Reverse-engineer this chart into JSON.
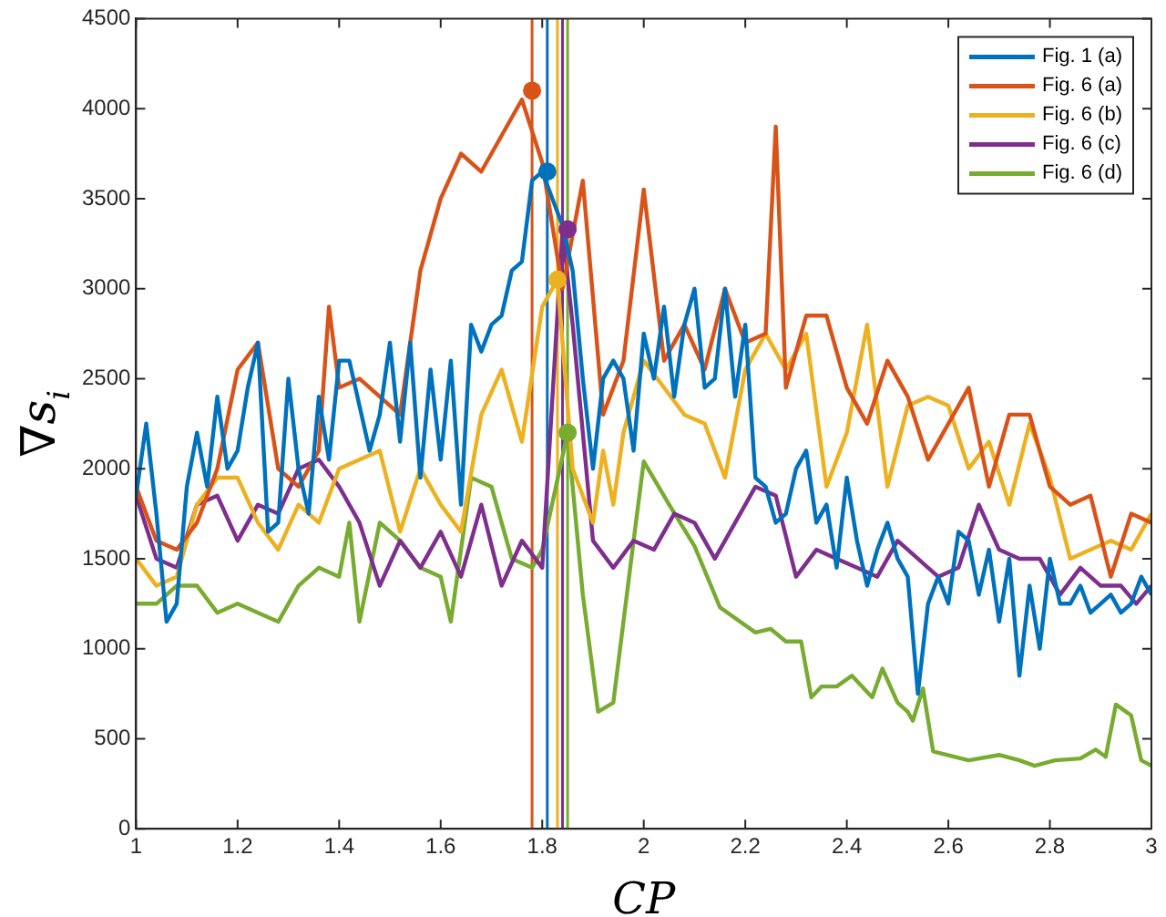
{
  "chart_data": {
    "type": "line",
    "xlabel": "CP",
    "ylabel": "∇s$_{i}$",
    "xlim": [
      1,
      3
    ],
    "xticks": [
      1,
      1.2,
      1.4,
      1.6,
      1.8,
      2,
      2.2,
      2.4,
      2.6,
      2.8,
      3
    ],
    "ylim": [
      0,
      4500
    ],
    "yticks": [
      0,
      500,
      1000,
      1500,
      2000,
      2500,
      3000,
      3500,
      4000,
      4500
    ],
    "grid": false,
    "legend": "top right",
    "marker": "none",
    "line_style": "solid",
    "series": [
      {
        "name": "Fig. 1 (a)",
        "color": "#0072bd",
        "x": [
          1,
          1.02,
          1.04,
          1.06,
          1.08,
          1.1,
          1.12,
          1.14,
          1.16,
          1.18,
          1.2,
          1.22,
          1.24,
          1.26,
          1.28,
          1.3,
          1.32,
          1.34,
          1.36,
          1.38,
          1.4,
          1.42,
          1.44,
          1.46,
          1.48,
          1.5,
          1.52,
          1.54,
          1.56,
          1.58,
          1.6,
          1.62,
          1.64,
          1.66,
          1.68,
          1.7,
          1.72,
          1.74,
          1.76,
          1.78,
          1.8,
          1.82,
          1.84,
          1.86,
          1.88,
          1.9,
          1.92,
          1.94,
          1.96,
          1.98,
          2,
          2.02,
          2.04,
          2.06,
          2.08,
          2.1,
          2.12,
          2.14,
          2.16,
          2.18,
          2.2,
          2.22,
          2.24,
          2.26,
          2.28,
          2.3,
          2.32,
          2.34,
          2.36,
          2.38,
          2.4,
          2.42,
          2.44,
          2.46,
          2.48,
          2.5,
          2.52,
          2.54,
          2.56,
          2.58,
          2.6,
          2.62,
          2.64,
          2.66,
          2.68,
          2.7,
          2.72,
          2.74,
          2.76,
          2.78,
          2.8,
          2.82,
          2.84,
          2.86,
          2.88,
          2.9,
          2.92,
          2.94,
          2.96,
          2.98,
          3
        ],
        "values": [
          1850,
          2250,
          1750,
          1150,
          1250,
          1900,
          2200,
          1900,
          2400,
          2000,
          2100,
          2450,
          2700,
          1650,
          1700,
          2500,
          2000,
          1750,
          2400,
          2050,
          2600,
          2600,
          2350,
          2100,
          2300,
          2700,
          2150,
          2700,
          1950,
          2550,
          2050,
          2600,
          1800,
          2800,
          2650,
          2800,
          2850,
          3100,
          3150,
          3600,
          3650,
          3500,
          3350,
          3100,
          2500,
          2000,
          2500,
          2600,
          2500,
          2100,
          2750,
          2500,
          2900,
          2400,
          2800,
          3000,
          2450,
          2500,
          3000,
          2400,
          2800,
          1950,
          1900,
          1700,
          1750,
          2000,
          2100,
          1700,
          1800,
          1450,
          1950,
          1600,
          1350,
          1550,
          1700,
          1500,
          1400,
          750,
          1250,
          1400,
          1250,
          1650,
          1600,
          1300,
          1550,
          1150,
          1500,
          850,
          1350,
          1000,
          1500,
          1250,
          1250,
          1350,
          1200,
          1250,
          1300,
          1200,
          1250,
          1400,
          1300
        ]
      },
      {
        "name": "Fig. 6 (a)",
        "color": "#d95319",
        "x": [
          1,
          1.04,
          1.08,
          1.12,
          1.16,
          1.2,
          1.24,
          1.28,
          1.32,
          1.36,
          1.38,
          1.4,
          1.44,
          1.48,
          1.52,
          1.56,
          1.6,
          1.64,
          1.68,
          1.72,
          1.76,
          1.8,
          1.84,
          1.88,
          1.92,
          1.96,
          2,
          2.04,
          2.08,
          2.12,
          2.16,
          2.2,
          2.24,
          2.26,
          2.28,
          2.32,
          2.36,
          2.4,
          2.44,
          2.48,
          2.52,
          2.56,
          2.6,
          2.64,
          2.68,
          2.72,
          2.76,
          2.8,
          2.84,
          2.88,
          2.92,
          2.96,
          3
        ],
        "values": [
          1900,
          1600,
          1550,
          1700,
          2000,
          2550,
          2700,
          2000,
          1900,
          2100,
          2900,
          2450,
          2500,
          2400,
          2300,
          3100,
          3500,
          3750,
          3650,
          3850,
          4050,
          3700,
          3000,
          3600,
          2300,
          2600,
          3550,
          2600,
          2800,
          2550,
          3000,
          2700,
          2750,
          3900,
          2450,
          2850,
          2850,
          2450,
          2250,
          2600,
          2400,
          2050,
          2250,
          2450,
          1900,
          2300,
          2300,
          1900,
          1800,
          1850,
          1400,
          1750,
          1700
        ]
      },
      {
        "name": "Fig. 6 (b)",
        "color": "#edb120",
        "x": [
          1,
          1.04,
          1.08,
          1.12,
          1.16,
          1.2,
          1.24,
          1.28,
          1.32,
          1.36,
          1.4,
          1.44,
          1.48,
          1.52,
          1.56,
          1.6,
          1.64,
          1.68,
          1.72,
          1.76,
          1.8,
          1.83,
          1.86,
          1.9,
          1.92,
          1.94,
          1.96,
          2,
          2.04,
          2.08,
          2.12,
          2.16,
          2.2,
          2.24,
          2.28,
          2.32,
          2.36,
          2.4,
          2.44,
          2.48,
          2.52,
          2.56,
          2.6,
          2.64,
          2.68,
          2.72,
          2.76,
          2.8,
          2.84,
          2.88,
          2.92,
          2.96,
          3
        ],
        "values": [
          1500,
          1350,
          1400,
          1800,
          1950,
          1950,
          1700,
          1550,
          1800,
          1700,
          2000,
          2050,
          2100,
          1650,
          2000,
          1800,
          1650,
          2300,
          2550,
          2150,
          2900,
          3050,
          2000,
          1700,
          2100,
          1800,
          2200,
          2600,
          2450,
          2300,
          2250,
          1950,
          2550,
          2750,
          2550,
          2750,
          1900,
          2200,
          2800,
          1900,
          2350,
          2400,
          2350,
          2000,
          2150,
          1800,
          2250,
          1950,
          1500,
          1550,
          1600,
          1550,
          1750
        ]
      },
      {
        "name": "Fig. 6 (c)",
        "color": "#7e2f8e",
        "x": [
          1,
          1.04,
          1.08,
          1.12,
          1.16,
          1.2,
          1.24,
          1.28,
          1.32,
          1.36,
          1.4,
          1.44,
          1.48,
          1.52,
          1.56,
          1.6,
          1.64,
          1.68,
          1.72,
          1.76,
          1.8,
          1.84,
          1.86,
          1.88,
          1.9,
          1.94,
          1.98,
          2.02,
          2.06,
          2.1,
          2.14,
          2.18,
          2.22,
          2.26,
          2.3,
          2.34,
          2.38,
          2.42,
          2.46,
          2.5,
          2.54,
          2.58,
          2.62,
          2.66,
          2.7,
          2.74,
          2.78,
          2.82,
          2.86,
          2.9,
          2.94,
          2.97,
          3
        ],
        "values": [
          1850,
          1500,
          1450,
          1800,
          1850,
          1600,
          1800,
          1750,
          2000,
          2050,
          1900,
          1700,
          1350,
          1600,
          1450,
          1650,
          1400,
          1800,
          1350,
          1600,
          1450,
          3330,
          2800,
          2200,
          1600,
          1450,
          1600,
          1550,
          1750,
          1700,
          1500,
          1700,
          1900,
          1850,
          1400,
          1550,
          1500,
          1450,
          1400,
          1600,
          1500,
          1400,
          1450,
          1800,
          1550,
          1500,
          1500,
          1300,
          1450,
          1350,
          1350,
          1250,
          1350
        ]
      },
      {
        "name": "Fig. 6 (d)",
        "color": "#77ac30",
        "x": [
          1,
          1.04,
          1.08,
          1.12,
          1.16,
          1.2,
          1.24,
          1.28,
          1.32,
          1.36,
          1.4,
          1.42,
          1.44,
          1.48,
          1.52,
          1.56,
          1.6,
          1.62,
          1.66,
          1.7,
          1.74,
          1.78,
          1.8,
          1.85,
          1.88,
          1.91,
          1.94,
          1.98,
          2,
          2.05,
          2.1,
          2.15,
          2.22,
          2.25,
          2.28,
          2.31,
          2.33,
          2.35,
          2.38,
          2.41,
          2.45,
          2.47,
          2.5,
          2.52,
          2.53,
          2.55,
          2.57,
          2.64,
          2.7,
          2.74,
          2.77,
          2.81,
          2.86,
          2.89,
          2.91,
          2.93,
          2.96,
          2.98,
          3
        ],
        "values": [
          1250,
          1250,
          1350,
          1350,
          1200,
          1250,
          1200,
          1150,
          1350,
          1450,
          1400,
          1700,
          1150,
          1700,
          1600,
          1450,
          1400,
          1150,
          1950,
          1900,
          1500,
          1450,
          1550,
          2200,
          1300,
          650,
          700,
          1600,
          2040,
          1800,
          1570,
          1230,
          1090,
          1110,
          1040,
          1040,
          730,
          790,
          790,
          850,
          730,
          890,
          700,
          650,
          600,
          780,
          430,
          380,
          410,
          380,
          350,
          380,
          390,
          440,
          400,
          690,
          630,
          380,
          350
        ]
      },
      {
        "type": "scatter",
        "marker": "circle",
        "color": "#d95319",
        "x": [
          1.78
        ],
        "values": [
          4100
        ]
      },
      {
        "type": "scatter",
        "marker": "circle",
        "color": "#0072bd",
        "x": [
          1.81
        ],
        "values": [
          3650
        ]
      },
      {
        "type": "scatter",
        "marker": "circle",
        "color": "#edb120",
        "x": [
          1.83
        ],
        "values": [
          3050
        ]
      },
      {
        "type": "scatter",
        "marker": "circle",
        "color": "#7e2f8e",
        "x": [
          1.85
        ],
        "values": [
          3330
        ]
      },
      {
        "type": "scatter",
        "marker": "circle",
        "color": "#77ac30",
        "x": [
          1.85
        ],
        "values": [
          2200
        ]
      }
    ],
    "ref_lines": [
      {
        "axis": "x",
        "value": 1.78,
        "color": "#d95319"
      },
      {
        "axis": "x",
        "value": 1.81,
        "color": "#0072bd"
      },
      {
        "axis": "x",
        "value": 1.83,
        "color": "#edb120"
      },
      {
        "axis": "x",
        "value": 1.84,
        "color": "#7e2f8e"
      },
      {
        "axis": "x",
        "value": 1.85,
        "color": "#77ac30"
      }
    ]
  }
}
